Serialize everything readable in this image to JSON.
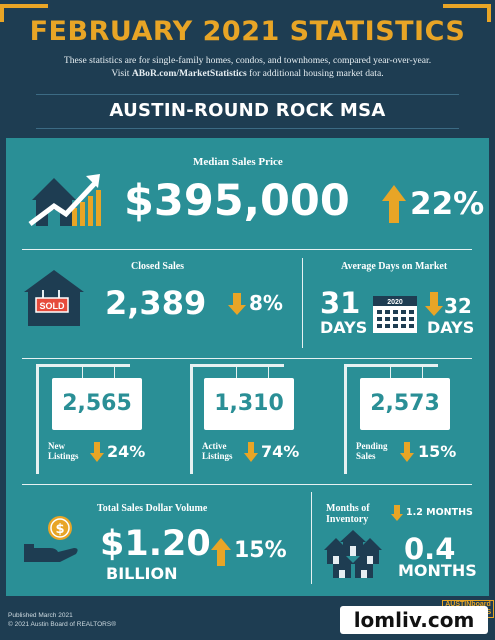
{
  "header": {
    "title": "FEBRUARY 2021 STATISTICS",
    "subtitle_line1": "These statistics are for single-family homes, condos, and townhomes, compared year-over-year.",
    "subtitle_visit": "Visit ",
    "subtitle_link": "ABoR.com/MarketStatistics",
    "subtitle_rest": " for additional housing market data.",
    "region": "AUSTIN-ROUND ROCK MSA"
  },
  "median_sales_price": {
    "label": "Median Sales Price",
    "value": "$395,000",
    "change": "22%",
    "direction": "up"
  },
  "closed_sales": {
    "label": "Closed Sales",
    "value": "2,389",
    "change": "8%",
    "direction": "down",
    "sign_text": "SOLD"
  },
  "avg_days_on_market": {
    "label": "Average Days on Market",
    "value": "31",
    "unit": "DAYS",
    "calendar_year": "2020",
    "change": "32",
    "change_unit": "DAYS",
    "direction": "down"
  },
  "listings": [
    {
      "value": "2,565",
      "label_line1": "New",
      "label_line2": "Listings",
      "change": "24%",
      "direction": "down"
    },
    {
      "value": "1,310",
      "label_line1": "Active",
      "label_line2": "Listings",
      "change": "74%",
      "direction": "down"
    },
    {
      "value": "2,573",
      "label_line1": "Pending",
      "label_line2": "Sales",
      "change": "15%",
      "direction": "down"
    }
  ],
  "total_sales_volume": {
    "label": "Total Sales Dollar Volume",
    "value": "$1.20",
    "unit": "BILLION",
    "change": "15%",
    "direction": "up"
  },
  "months_inventory": {
    "label_line1": "Months of",
    "label_line2": "Inventory",
    "change": "1.2 MONTHS",
    "direction": "down",
    "value": "0.4",
    "unit": "MONTHS"
  },
  "footer": {
    "published": "Published March 2021",
    "copyright": "© 2021 Austin Board of REALTORS®",
    "logo_text": "AUSTINboard of REALTORS"
  },
  "watermark": "lomliv.com",
  "colors": {
    "navy": "#1e3d52",
    "teal": "#2a8f96",
    "gold": "#e8a526",
    "white": "#ffffff"
  }
}
